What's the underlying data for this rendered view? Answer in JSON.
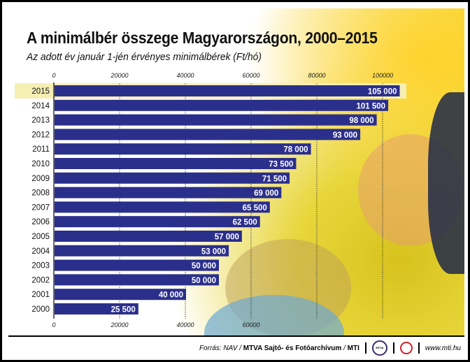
{
  "chart_data": {
    "type": "bar",
    "orientation": "horizontal",
    "title": "A minimálbér összege Magyarországon, 2000–2015",
    "subtitle": "Az adott év január 1-jén érvényes minimálbérek (Ft/hó)",
    "categories": [
      "2015",
      "2014",
      "2013",
      "2012",
      "2011",
      "2010",
      "2009",
      "2008",
      "2007",
      "2006",
      "2005",
      "2004",
      "2003",
      "2002",
      "2001",
      "2000"
    ],
    "values": [
      105000,
      101500,
      98000,
      93000,
      78000,
      73500,
      71500,
      69000,
      65500,
      62500,
      57000,
      53000,
      50000,
      50000,
      40000,
      25500
    ],
    "data_labels": [
      "105 000",
      "101 500",
      "98 000",
      "93 000",
      "78 000",
      "73 500",
      "71 500",
      "69 000",
      "65 500",
      "62 500",
      "57 000",
      "53 000",
      "50 000",
      "50 000",
      "40 000",
      "25 500"
    ],
    "top_ticks": [
      "0",
      "20000",
      "40000",
      "60000",
      "80000",
      "100000"
    ],
    "bottom_ticks": [
      "0",
      "20000",
      "40000",
      "60000"
    ],
    "xlim": [
      0,
      105000
    ],
    "grid": "dotted vertical",
    "highlight": "2015",
    "colors": {
      "bar": "#2b2f8c",
      "highlight": "#f6efb4",
      "label": "#ffffff"
    }
  },
  "footer": {
    "source_prefix": "Forrás: NAV / ",
    "source_bold": "MTVA Sajtó- és Fotóarchívum",
    "source_sep": " / ",
    "source_mti": "MTI",
    "logo_mtva": "MTVA",
    "url": "www.mti.hu"
  }
}
